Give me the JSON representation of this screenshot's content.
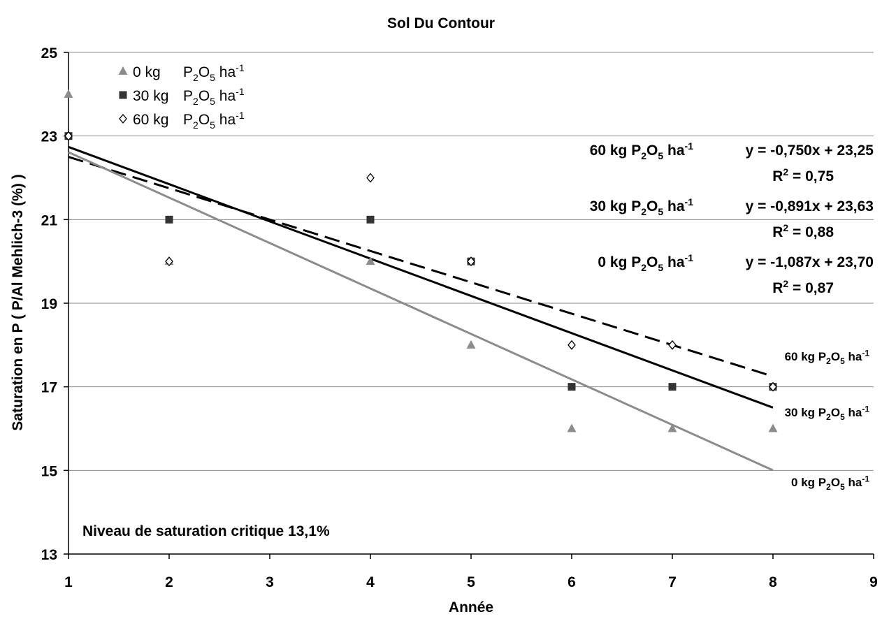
{
  "chart_data": {
    "type": "scatter",
    "title": "Sol Du Contour",
    "xlabel": "Année",
    "ylabel": "Saturation en P ( P/Al Mehlich-3 (%) )",
    "xlim": [
      1,
      9
    ],
    "ylim": [
      13,
      25
    ],
    "xticks": [
      "1",
      "2",
      "3",
      "4",
      "5",
      "6",
      "7",
      "8",
      "9"
    ],
    "yticks": [
      "13",
      "15",
      "17",
      "19",
      "21",
      "23",
      "25"
    ],
    "grid": "horizontal",
    "legend_position": "top-left",
    "series": [
      {
        "name_lead": "0 kg",
        "name_unit": "P2O5 ha-1",
        "marker": "triangle",
        "color": "#8c8c8c",
        "x": [
          1,
          2,
          4,
          5,
          6,
          7,
          8
        ],
        "y": [
          24,
          20,
          20,
          18,
          16,
          16,
          16
        ]
      },
      {
        "name_lead": "30 kg",
        "name_unit": "P2O5 ha-1",
        "marker": "square",
        "color": "#333333",
        "x": [
          1,
          2,
          4,
          5,
          6,
          7,
          8
        ],
        "y": [
          23,
          21,
          21,
          20,
          17,
          17,
          17
        ]
      },
      {
        "name_lead": "60 kg",
        "name_unit": "P2O5 ha-1",
        "marker": "diamond",
        "color": "#000000",
        "x": [
          1,
          2,
          4,
          5,
          6,
          7,
          8
        ],
        "y": [
          23,
          20,
          22,
          20,
          18,
          18,
          17
        ]
      }
    ],
    "trendlines": [
      {
        "label": "60 kg P2O5 ha-1",
        "slope": -0.75,
        "intercept": 23.25,
        "x_range": [
          1,
          8
        ],
        "style": "dashed",
        "color": "#000000",
        "equation": "y = -0,750x + 23,25",
        "r2_value": "= 0,75"
      },
      {
        "label": "30 kg P2O5 ha-1",
        "slope": -0.891,
        "intercept": 23.63,
        "x_range": [
          1,
          8
        ],
        "style": "solid",
        "color": "#000000",
        "equation": "y = -0,891x + 23,63",
        "r2_value": "= 0,88"
      },
      {
        "label": "0 kg P2O5 ha-1",
        "slope": -1.087,
        "intercept": 23.7,
        "x_range": [
          1,
          8
        ],
        "style": "solid",
        "color": "#8c8c8c",
        "equation": "y = -1,087x + 23,70",
        "r2_value": "= 0,87"
      }
    ],
    "annotations": {
      "critical_level": "Niveau de saturation critique 13,1%",
      "end_labels": [
        "60 kg P2O5 ha-1",
        "30 kg P2O5 ha-1",
        "0 kg P2O5 ha-1"
      ]
    }
  }
}
